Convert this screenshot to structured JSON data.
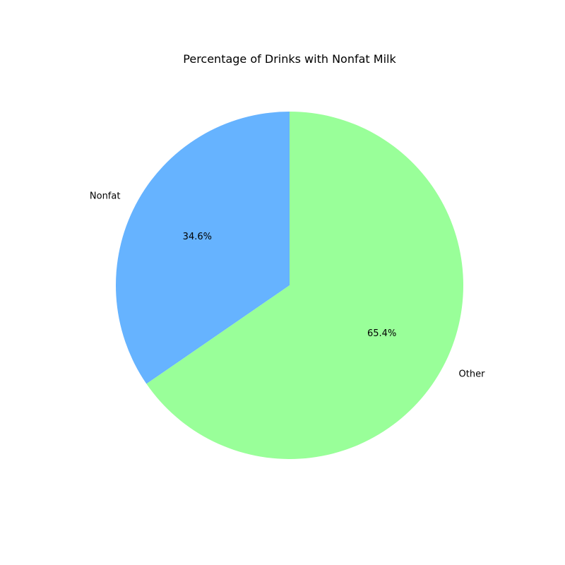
{
  "chart_data": {
    "type": "pie",
    "title": "Percentage of Drinks with Nonfat Milk",
    "categories": [
      "Nonfat",
      "Other"
    ],
    "values": [
      34.6,
      65.4
    ],
    "value_labels": [
      "34.6%",
      "65.4%"
    ],
    "colors": [
      "#66b3ff",
      "#99ff99"
    ],
    "start_angle_deg": 90,
    "direction": "counterclockwise",
    "legend": "none"
  }
}
